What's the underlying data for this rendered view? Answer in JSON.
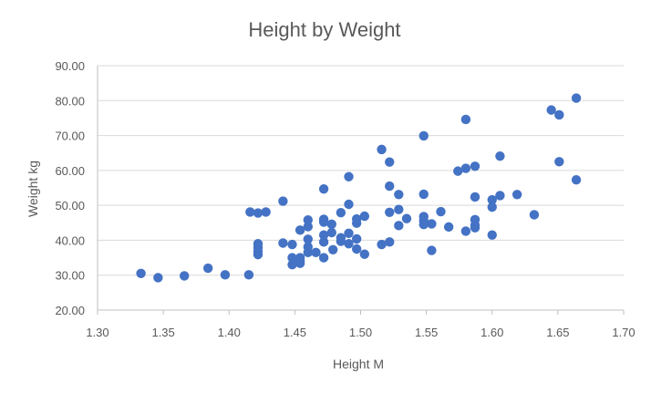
{
  "chart_data": {
    "type": "scatter",
    "title": "Height by Weight",
    "xlabel": "Height M",
    "ylabel": "Weight kg",
    "xlim": [
      1.3,
      1.7
    ],
    "ylim": [
      20.0,
      90.0
    ],
    "x_ticks": [
      "1.30",
      "1.35",
      "1.40",
      "1.45",
      "1.50",
      "1.55",
      "1.60",
      "1.65",
      "1.70"
    ],
    "y_ticks": [
      "20.00",
      "30.00",
      "40.00",
      "50.00",
      "60.00",
      "70.00",
      "80.00",
      "90.00"
    ],
    "x_tick_values": [
      1.3,
      1.35,
      1.4,
      1.45,
      1.5,
      1.55,
      1.6,
      1.65,
      1.7
    ],
    "y_tick_values": [
      20,
      30,
      40,
      50,
      60,
      70,
      80,
      90
    ],
    "grid": "horizontal",
    "legend": "none",
    "marker_color": "#4472C4",
    "points": [
      [
        1.333,
        30.5
      ],
      [
        1.346,
        29.3
      ],
      [
        1.366,
        29.8
      ],
      [
        1.384,
        32.0
      ],
      [
        1.397,
        30.1
      ],
      [
        1.415,
        30.1
      ],
      [
        1.416,
        48.1
      ],
      [
        1.422,
        47.8
      ],
      [
        1.428,
        48.1
      ],
      [
        1.422,
        39.0
      ],
      [
        1.422,
        37.9
      ],
      [
        1.422,
        36.8
      ],
      [
        1.422,
        35.9
      ],
      [
        1.441,
        51.2
      ],
      [
        1.441,
        39.2
      ],
      [
        1.448,
        38.8
      ],
      [
        1.448,
        35.0
      ],
      [
        1.448,
        33.0
      ],
      [
        1.454,
        35.0
      ],
      [
        1.454,
        34.1
      ],
      [
        1.454,
        33.4
      ],
      [
        1.454,
        42.9
      ],
      [
        1.46,
        45.8
      ],
      [
        1.46,
        43.9
      ],
      [
        1.46,
        40.3
      ],
      [
        1.46,
        38.1
      ],
      [
        1.46,
        36.5
      ],
      [
        1.466,
        36.5
      ],
      [
        1.472,
        54.7
      ],
      [
        1.472,
        46.0
      ],
      [
        1.472,
        45.2
      ],
      [
        1.472,
        41.5
      ],
      [
        1.472,
        39.5
      ],
      [
        1.472,
        35.0
      ],
      [
        1.478,
        44.6
      ],
      [
        1.478,
        42.2
      ],
      [
        1.479,
        37.3
      ],
      [
        1.485,
        47.9
      ],
      [
        1.485,
        40.7
      ],
      [
        1.485,
        39.7
      ],
      [
        1.491,
        58.2
      ],
      [
        1.491,
        50.3
      ],
      [
        1.491,
        42.0
      ],
      [
        1.491,
        39.0
      ],
      [
        1.497,
        46.1
      ],
      [
        1.497,
        44.9
      ],
      [
        1.497,
        40.4
      ],
      [
        1.497,
        37.5
      ],
      [
        1.503,
        46.9
      ],
      [
        1.503,
        36.0
      ],
      [
        1.516,
        66.0
      ],
      [
        1.516,
        38.8
      ],
      [
        1.522,
        62.4
      ],
      [
        1.522,
        55.5
      ],
      [
        1.522,
        48.0
      ],
      [
        1.522,
        39.5
      ],
      [
        1.529,
        53.1
      ],
      [
        1.529,
        48.8
      ],
      [
        1.529,
        44.2
      ],
      [
        1.535,
        46.2
      ],
      [
        1.548,
        69.9
      ],
      [
        1.548,
        53.2
      ],
      [
        1.548,
        46.8
      ],
      [
        1.548,
        45.6
      ],
      [
        1.548,
        44.5
      ],
      [
        1.554,
        44.7
      ],
      [
        1.554,
        37.1
      ],
      [
        1.561,
        48.2
      ],
      [
        1.567,
        43.8
      ],
      [
        1.574,
        59.8
      ],
      [
        1.58,
        74.6
      ],
      [
        1.58,
        60.6
      ],
      [
        1.58,
        42.6
      ],
      [
        1.587,
        61.2
      ],
      [
        1.587,
        52.4
      ],
      [
        1.587,
        45.9
      ],
      [
        1.587,
        44.3
      ],
      [
        1.587,
        43.6
      ],
      [
        1.6,
        51.6
      ],
      [
        1.6,
        49.5
      ],
      [
        1.6,
        41.5
      ],
      [
        1.606,
        64.1
      ],
      [
        1.606,
        52.8
      ],
      [
        1.619,
        53.1
      ],
      [
        1.632,
        47.3
      ],
      [
        1.645,
        77.3
      ],
      [
        1.651,
        75.9
      ],
      [
        1.651,
        62.5
      ],
      [
        1.664,
        80.7
      ],
      [
        1.664,
        57.3
      ]
    ]
  }
}
